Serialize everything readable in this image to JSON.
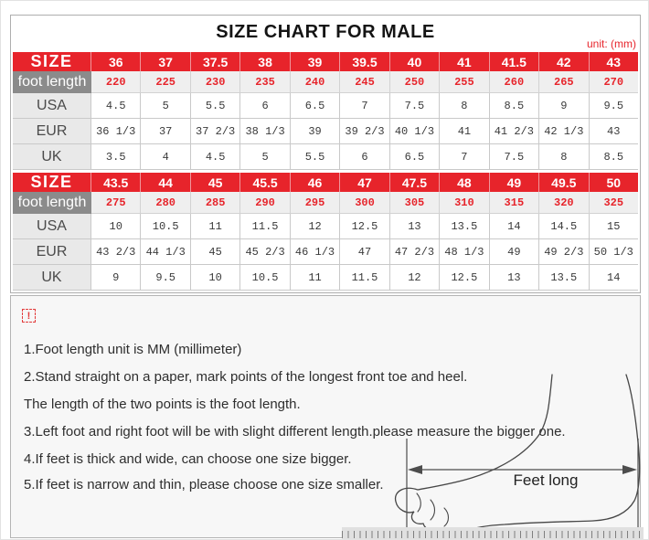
{
  "title": "SIZE CHART FOR MALE",
  "unit_label": "unit: (mm)",
  "colors": {
    "accent_red": "#e7242b",
    "header_gray": "#8b8b8b"
  },
  "chart_data": [
    {
      "type": "table",
      "title": "SIZE CHART FOR MALE (sizes 36-43)",
      "rows": [
        {
          "label": "SIZE",
          "style": "size",
          "values": [
            "36",
            "37",
            "37.5",
            "38",
            "39",
            "39.5",
            "40",
            "41",
            "41.5",
            "42",
            "43"
          ]
        },
        {
          "label": "foot length",
          "style": "footlength",
          "values": [
            "220",
            "225",
            "230",
            "235",
            "240",
            "245",
            "250",
            "255",
            "260",
            "265",
            "270"
          ]
        },
        {
          "label": "USA",
          "style": "plain",
          "values": [
            "4.5",
            "5",
            "5.5",
            "6",
            "6.5",
            "7",
            "7.5",
            "8",
            "8.5",
            "9",
            "9.5"
          ]
        },
        {
          "label": "EUR",
          "style": "plain",
          "values": [
            "36 1/3",
            "37",
            "37 2/3",
            "38 1/3",
            "39",
            "39 2/3",
            "40 1/3",
            "41",
            "41 2/3",
            "42 1/3",
            "43"
          ]
        },
        {
          "label": "UK",
          "style": "plain",
          "values": [
            "3.5",
            "4",
            "4.5",
            "5",
            "5.5",
            "6",
            "6.5",
            "7",
            "7.5",
            "8",
            "8.5"
          ]
        }
      ]
    },
    {
      "type": "table",
      "title": "SIZE CHART FOR MALE (sizes 43.5-50)",
      "rows": [
        {
          "label": "SIZE",
          "style": "size",
          "values": [
            "43.5",
            "44",
            "45",
            "45.5",
            "46",
            "47",
            "47.5",
            "48",
            "49",
            "49.5",
            "50"
          ]
        },
        {
          "label": "foot length",
          "style": "footlength",
          "values": [
            "275",
            "280",
            "285",
            "290",
            "295",
            "300",
            "305",
            "310",
            "315",
            "320",
            "325"
          ]
        },
        {
          "label": "USA",
          "style": "plain",
          "values": [
            "10",
            "10.5",
            "11",
            "11.5",
            "12",
            "12.5",
            "13",
            "13.5",
            "14",
            "14.5",
            "15"
          ]
        },
        {
          "label": "EUR",
          "style": "plain",
          "values": [
            "43 2/3",
            "44 1/3",
            "45",
            "45 2/3",
            "46 1/3",
            "47",
            "47 2/3",
            "48 1/3",
            "49",
            "49 2/3",
            "50 1/3"
          ]
        },
        {
          "label": "UK",
          "style": "plain",
          "values": [
            "9",
            "9.5",
            "10",
            "10.5",
            "11",
            "11.5",
            "12",
            "12.5",
            "13",
            "13.5",
            "14"
          ]
        }
      ]
    }
  ],
  "notes": {
    "icon": "!",
    "lines": [
      "1.Foot length unit is MM (millimeter)",
      "2.Stand straight on a paper, mark points of the longest front toe and heel.",
      "The length of the two points is the foot length.",
      "3.Left foot and right foot will be with slight different length.please measure the bigger one.",
      "4.If feet is thick and wide, can choose one size bigger.",
      "5.If feet is narrow and thin, please choose one size smaller."
    ]
  },
  "diagram": {
    "label": "Feet long"
  }
}
